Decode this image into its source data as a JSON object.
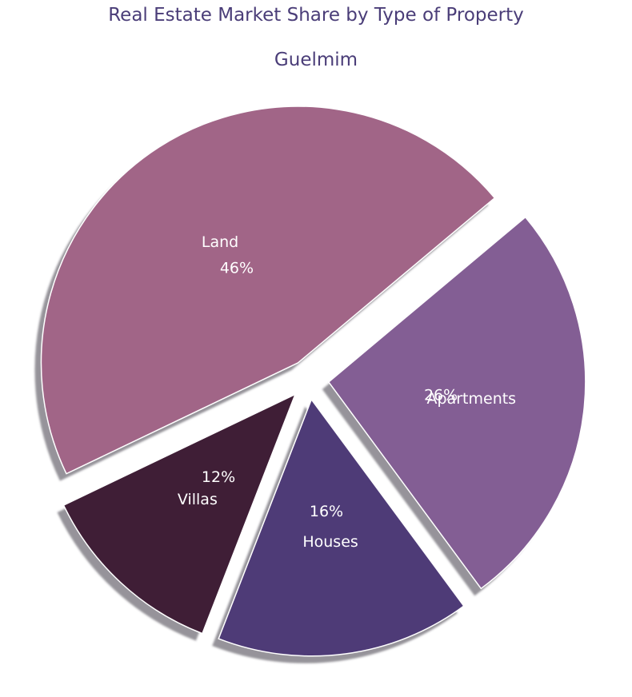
{
  "chart_data": {
    "type": "pie",
    "title": "Real Estate Market Share by Type of Property",
    "subtitle": "Guelmim",
    "categories": [
      "Land",
      "Villas",
      "Houses",
      "Apartments"
    ],
    "values": [
      46,
      12,
      16,
      26
    ],
    "value_labels": [
      "46%",
      "12%",
      "16%",
      "26%"
    ],
    "colors": [
      "#a16587",
      "#3f1e36",
      "#4e3b77",
      "#835e94"
    ],
    "shadow": true,
    "exploded": true
  }
}
